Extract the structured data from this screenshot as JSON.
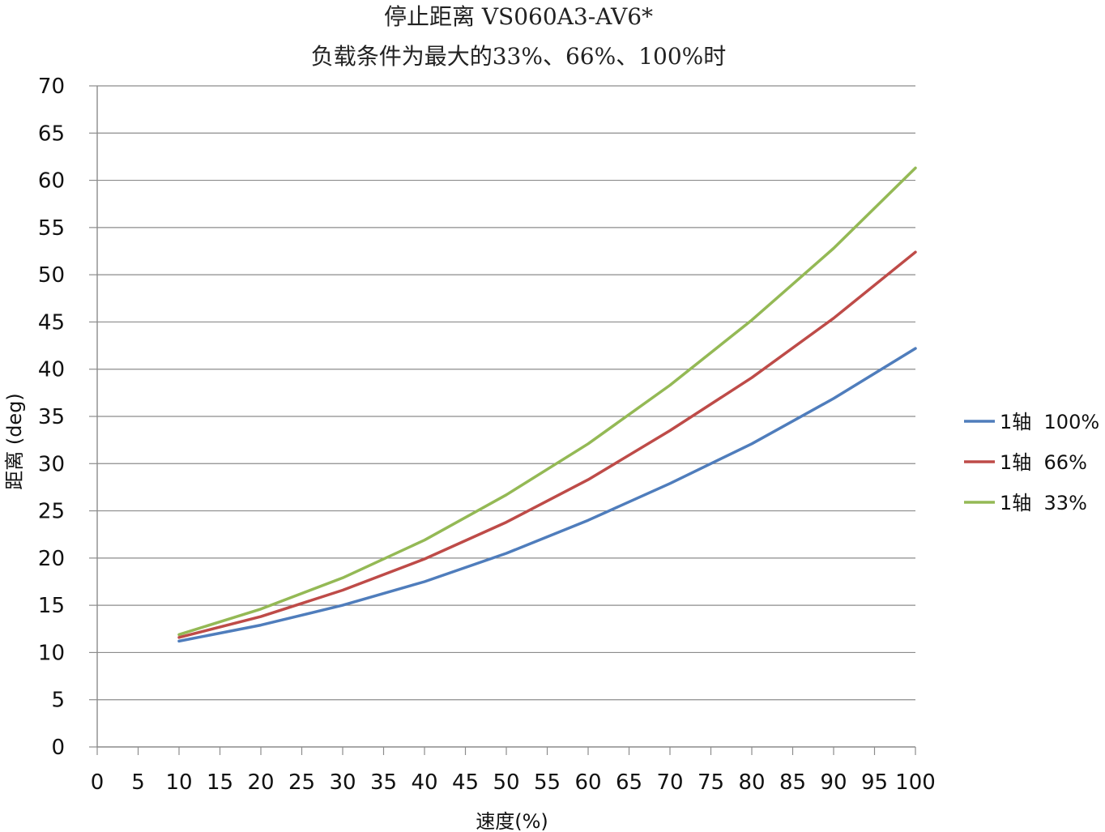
{
  "chart_data": {
    "type": "line",
    "title": "停止距离 VS060A3-AV6*",
    "subtitle": "负载条件为最大的33%、66%、100%时",
    "xlabel": "速度(%)",
    "ylabel": "距离 (deg)",
    "xlim": [
      0,
      100
    ],
    "ylim": [
      0,
      70
    ],
    "x_ticks": [
      0,
      5,
      10,
      15,
      20,
      25,
      30,
      35,
      40,
      45,
      50,
      55,
      60,
      65,
      70,
      75,
      80,
      85,
      90,
      95,
      100
    ],
    "y_ticks": [
      0,
      5,
      10,
      15,
      20,
      25,
      30,
      35,
      40,
      45,
      50,
      55,
      60,
      65,
      70
    ],
    "grid": "horizontal",
    "legend_position": "right",
    "x": [
      10,
      20,
      30,
      40,
      50,
      60,
      70,
      80,
      90,
      100
    ],
    "series": [
      {
        "name": "1轴  100%",
        "color": "#4f7dbc",
        "values": [
          11.2,
          12.9,
          15.0,
          17.5,
          20.5,
          24.0,
          27.9,
          32.1,
          36.9,
          42.2
        ]
      },
      {
        "name": "1轴  66%",
        "color": "#be4b48",
        "values": [
          11.6,
          13.8,
          16.6,
          19.9,
          23.8,
          28.3,
          33.5,
          39.1,
          45.4,
          52.4
        ]
      },
      {
        "name": "1轴  33%",
        "color": "#94b955",
        "values": [
          11.9,
          14.6,
          17.9,
          21.9,
          26.7,
          32.1,
          38.3,
          45.2,
          52.8,
          61.3
        ]
      }
    ]
  }
}
